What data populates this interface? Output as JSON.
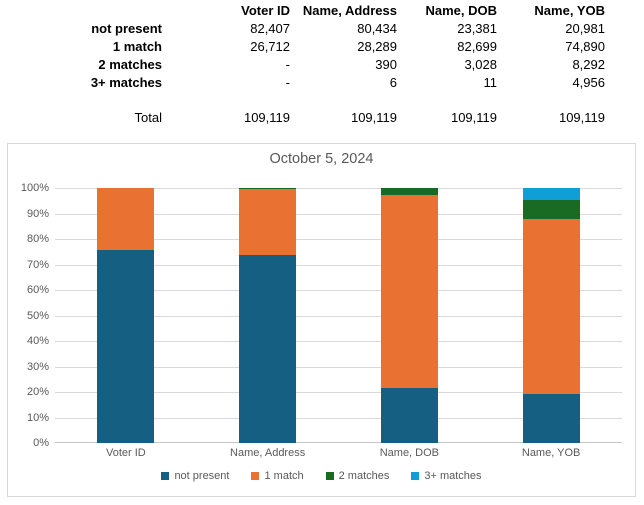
{
  "table": {
    "corner_label": "",
    "columns": [
      "Voter ID",
      "Name, Address",
      "Name, DOB",
      "Name, YOB"
    ],
    "rows": [
      {
        "label": "not present",
        "values": [
          "82,407",
          "80,434",
          "23,381",
          "20,981"
        ]
      },
      {
        "label": "1 match",
        "values": [
          "26,712",
          "28,289",
          "82,699",
          "74,890"
        ]
      },
      {
        "label": "2 matches",
        "values": [
          "-",
          "390",
          "3,028",
          "8,292"
        ]
      },
      {
        "label": "3+ matches",
        "values": [
          "-",
          "6",
          "11",
          "4,956"
        ]
      }
    ],
    "total_row": {
      "label": "Total",
      "values": [
        "109,119",
        "109,119",
        "109,119",
        "109,119"
      ]
    }
  },
  "chart_data": {
    "type": "bar",
    "subtype": "100-percent-stacked-column",
    "title": "October 5, 2024",
    "categories": [
      "Voter ID",
      "Name, Address",
      "Name, DOB",
      "Name, YOB"
    ],
    "series": [
      {
        "name": "not present",
        "color": "#156082",
        "values": [
          82407,
          80434,
          23381,
          20981
        ]
      },
      {
        "name": "1 match",
        "color": "#E97132",
        "values": [
          26712,
          28289,
          82699,
          74890
        ]
      },
      {
        "name": "2 matches",
        "color": "#196B24",
        "values": [
          0,
          390,
          3028,
          8292
        ]
      },
      {
        "name": "3+ matches",
        "color": "#0F9ED5",
        "values": [
          0,
          6,
          11,
          4956
        ]
      }
    ],
    "column_totals": [
      109119,
      109119,
      109119,
      109119
    ],
    "ylim": [
      0,
      100
    ],
    "ytick_labels": [
      "0%",
      "10%",
      "20%",
      "30%",
      "40%",
      "50%",
      "60%",
      "70%",
      "80%",
      "90%",
      "100%"
    ],
    "grid": true,
    "legend_position": "bottom"
  },
  "style": {
    "grid_color": "#D9D9D9",
    "baseline_color": "#C6C6C6",
    "chart_border_color": "#D9D9D9",
    "axis_text_color": "#595959",
    "title_color": "#595959"
  }
}
